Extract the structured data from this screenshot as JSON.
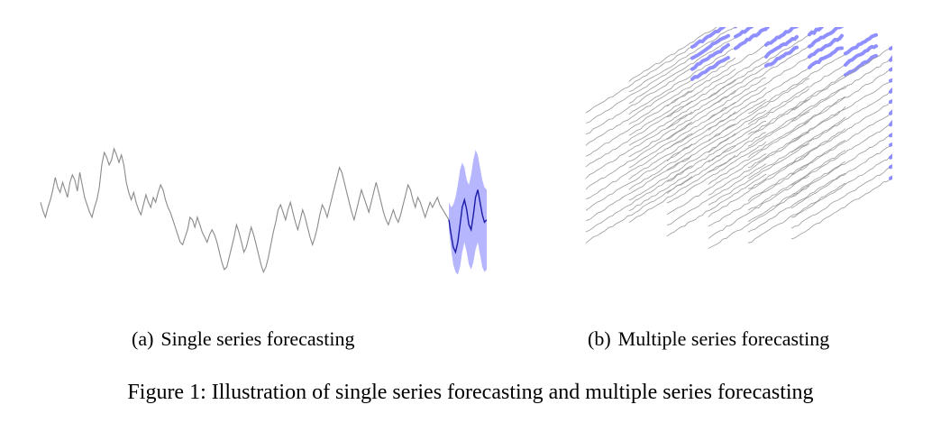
{
  "panels": [
    {
      "label": "(a)",
      "caption": "Single series forecasting"
    },
    {
      "label": "(b)",
      "caption": "Multiple series forecasting"
    }
  ],
  "figure_caption": "Figure 1: Illustration of single series forecasting and multiple series forecasting",
  "colors": {
    "history_line": "#8a8a8a",
    "forecast_line": "#1a1aa6",
    "forecast_band": "#a9a9ff",
    "multi_forecast": "#7b7bff"
  },
  "chart_data": {
    "type": "line",
    "title": "",
    "xlabel": "",
    "ylabel": "",
    "grid": false,
    "series": [
      {
        "values": [
          0.62,
          0.55,
          0.5,
          0.58,
          0.64,
          0.72,
          0.82,
          0.74,
          0.7,
          0.78,
          0.72,
          0.66,
          0.78,
          0.84,
          0.8,
          0.71,
          0.86,
          0.76,
          0.66,
          0.6,
          0.54,
          0.5,
          0.58,
          0.64,
          0.74,
          0.92,
          1.02,
          0.98,
          0.92,
          0.96,
          1.05,
          1.0,
          0.94,
          1.0,
          0.92,
          0.78,
          0.7,
          0.64,
          0.7,
          0.62,
          0.56,
          0.52,
          0.6,
          0.68,
          0.62,
          0.58,
          0.66,
          0.62,
          0.7,
          0.76,
          0.72,
          0.64,
          0.58,
          0.54,
          0.48,
          0.42,
          0.36,
          0.3,
          0.28,
          0.34,
          0.4,
          0.5,
          0.48,
          0.42,
          0.5,
          0.44,
          0.38,
          0.34,
          0.3,
          0.36,
          0.4,
          0.36,
          0.3,
          0.22,
          0.14,
          0.08,
          0.1,
          0.18,
          0.26,
          0.34,
          0.44,
          0.38,
          0.3,
          0.22,
          0.26,
          0.34,
          0.42,
          0.36,
          0.28,
          0.2,
          0.12,
          0.06,
          0.1,
          0.18,
          0.28,
          0.38,
          0.46,
          0.56,
          0.6,
          0.54,
          0.48,
          0.56,
          0.62,
          0.54,
          0.46,
          0.4,
          0.48,
          0.56,
          0.5,
          0.42,
          0.34,
          0.28,
          0.34,
          0.42,
          0.52,
          0.6,
          0.56,
          0.5,
          0.58,
          0.66,
          0.74,
          0.82,
          0.9,
          0.86,
          0.78,
          0.7,
          0.62,
          0.54,
          0.48,
          0.56,
          0.64,
          0.72,
          0.66,
          0.6,
          0.54,
          0.62,
          0.7,
          0.78,
          0.7,
          0.62,
          0.54,
          0.48,
          0.44,
          0.5,
          0.56,
          0.5,
          0.46,
          0.52,
          0.6,
          0.68,
          0.76,
          0.72,
          0.64,
          0.58,
          0.66,
          0.62,
          0.56,
          0.5,
          0.56,
          0.62,
          0.58,
          0.62,
          0.66,
          0.6
        ],
        "color": "#8a8a8a"
      },
      {
        "values": [
          0.48,
          0.36,
          0.26,
          0.22,
          0.3,
          0.44,
          0.58,
          0.64,
          0.56,
          0.44,
          0.4,
          0.52,
          0.66,
          0.72,
          0.62,
          0.52,
          0.46,
          0.48
        ],
        "color": "#1a1aa6",
        "band": {
          "upper": [
            0.62,
            0.58,
            0.6,
            0.66,
            0.76,
            0.88,
            0.94,
            0.9,
            0.8,
            0.76,
            0.84,
            0.96,
            1.04,
            1.0,
            0.9,
            0.8,
            0.74,
            0.72
          ],
          "lower": [
            0.4,
            0.24,
            0.12,
            0.06,
            0.04,
            0.1,
            0.22,
            0.3,
            0.22,
            0.12,
            0.08,
            0.14,
            0.24,
            0.3,
            0.2,
            0.1,
            0.06,
            0.08
          ]
        }
      }
    ]
  }
}
